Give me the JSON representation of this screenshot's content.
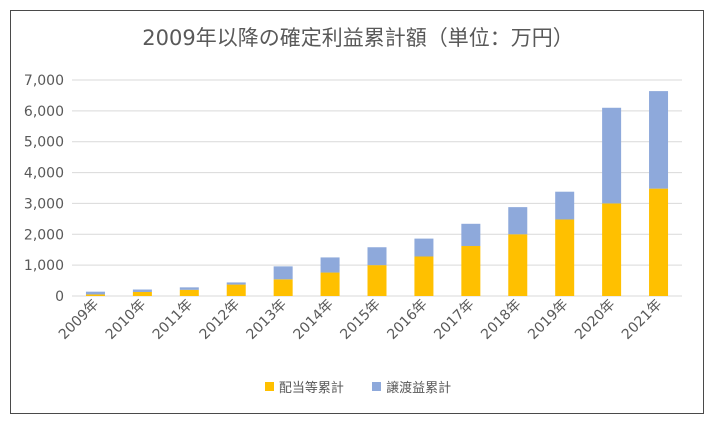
{
  "chart_data": {
    "type": "bar",
    "stacked": true,
    "title": "2009年以降の確定利益累計額（単位：万円）",
    "xlabel": "",
    "ylabel": "",
    "ylim": [
      0,
      7000
    ],
    "yticks": [
      "0",
      "1,000",
      "2,000",
      "3,000",
      "4,000",
      "5,000",
      "6,000",
      "7,000"
    ],
    "categories": [
      "2009年",
      "2010年",
      "2011年",
      "2012年",
      "2013年",
      "2014年",
      "2015年",
      "2016年",
      "2017年",
      "2018年",
      "2019年",
      "2020年",
      "2021年"
    ],
    "series": [
      {
        "name": "配当等累計",
        "color": "#FFC000",
        "values": [
          50,
          130,
          200,
          370,
          540,
          760,
          1000,
          1280,
          1620,
          2000,
          2480,
          3000,
          3480
        ]
      },
      {
        "name": "譲渡益累計",
        "color": "#8EA9DB",
        "values": [
          90,
          80,
          80,
          70,
          420,
          490,
          580,
          580,
          720,
          880,
          900,
          3100,
          3160
        ]
      }
    ],
    "grid": true,
    "legend_position": "bottom"
  }
}
